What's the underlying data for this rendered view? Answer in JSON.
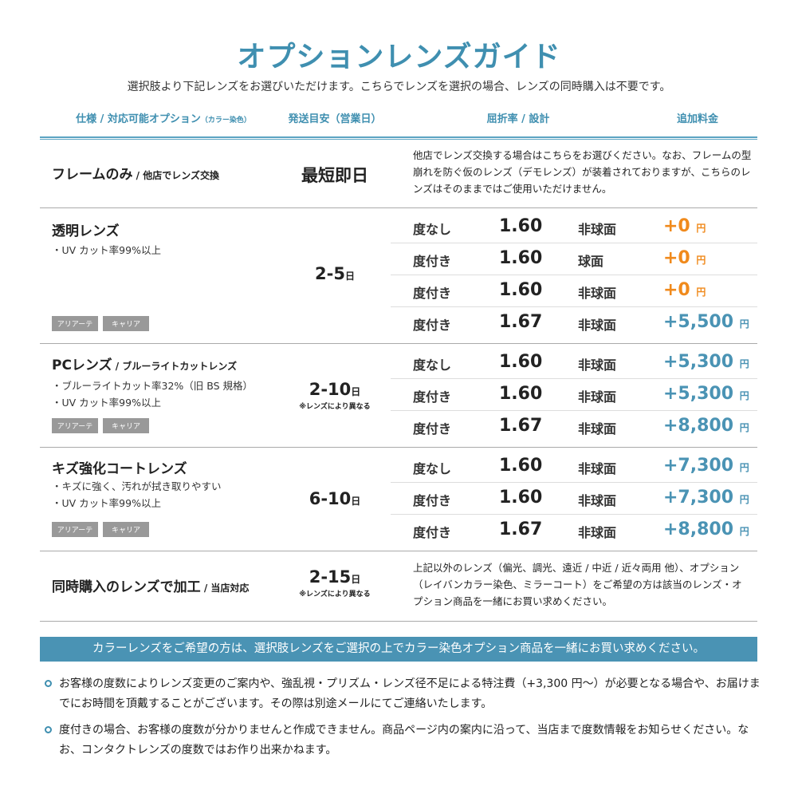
{
  "title": "オプションレンズガイド",
  "subtitle": "選択肢より下記レンズをお選びいただけます。こちらでレンズを選択の場合、レンズの同時購入は不要です。",
  "headers": {
    "spec": "仕様 / 対応可能オプション",
    "spec_small": "（カラー染色）",
    "days": "発送目安（営業日）",
    "index": "屈折率 / 設計",
    "price": "追加料金"
  },
  "colors": {
    "accent": "#3f8fb0",
    "orange": "#f08a1c",
    "price_blue": "#4a93b4"
  },
  "sections": [
    {
      "name": "フレームのみ",
      "sub": " / 他店でレンズ交換",
      "days": "最短即日",
      "desc": "他店でレンズ交換する場合はこちらをお選びください。なお、フレームの型崩れを防ぐ仮のレンズ（デモレンズ）が装着されておりますが、こちらのレンズはそのままではご使用いただけません。"
    },
    {
      "name": "透明レンズ",
      "bullets": [
        "・UV カット率99%以上"
      ],
      "tags": [
        "アリアーテ",
        "キャリア"
      ],
      "days": "2-5",
      "unit": "日",
      "rows": [
        {
          "label": "度なし",
          "index": "1.60",
          "design": "非球面",
          "price": "+0",
          "yen": "円"
        },
        {
          "label": "度付き",
          "index": "1.60",
          "design": "球面",
          "price": "+0",
          "yen": "円"
        },
        {
          "label": "度付き",
          "index": "1.60",
          "design": "非球面",
          "price": "+0",
          "yen": "円"
        },
        {
          "label": "度付き",
          "index": "1.67",
          "design": "非球面",
          "price": "+5,500",
          "yen": "円"
        }
      ]
    },
    {
      "name": "PCレンズ",
      "sub": " / ブルーライトカットレンズ",
      "bullets": [
        "・ブルーライトカット率32%（旧 BS 規格）",
        "・UV カット率99%以上"
      ],
      "tags": [
        "アリアーテ",
        "キャリア"
      ],
      "days": "2-10",
      "unit": "日",
      "note": "※レンズにより異なる",
      "rows": [
        {
          "label": "度なし",
          "index": "1.60",
          "design": "非球面",
          "price": "+5,300",
          "yen": "円"
        },
        {
          "label": "度付き",
          "index": "1.60",
          "design": "非球面",
          "price": "+5,300",
          "yen": "円"
        },
        {
          "label": "度付き",
          "index": "1.67",
          "design": "非球面",
          "price": "+8,800",
          "yen": "円"
        }
      ]
    },
    {
      "name": "キズ強化コートレンズ",
      "bullets": [
        "・キズに強く、汚れが拭き取りやすい",
        "・UV カット率99%以上"
      ],
      "tags": [
        "アリアーテ",
        "キャリア"
      ],
      "days": "6-10",
      "unit": "日",
      "rows": [
        {
          "label": "度なし",
          "index": "1.60",
          "design": "非球面",
          "price": "+7,300",
          "yen": "円"
        },
        {
          "label": "度付き",
          "index": "1.60",
          "design": "非球面",
          "price": "+7,300",
          "yen": "円"
        },
        {
          "label": "度付き",
          "index": "1.67",
          "design": "非球面",
          "price": "+8,800",
          "yen": "円"
        }
      ]
    },
    {
      "name": "同時購入のレンズで加工",
      "sub": " / 当店対応",
      "days": "2-15",
      "unit": "日",
      "note": "※レンズにより異なる",
      "desc": "上記以外のレンズ（偏光、調光、遠近 / 中近 / 近々両用 他）、オプション（レイバンカラー染色、ミラーコート）をご希望の方は該当のレンズ・オプション商品を一緒にお買い求めください。"
    }
  ],
  "banner": "カラーレンズをご希望の方は、選択肢レンズをご選択の上でカラー染色オプション商品を一緒にお買い求めください。",
  "notes": [
    "お客様の度数によりレンズ変更のご案内や、強乱視・プリズム・レンズ径不足による特注費（+3,300 円〜）が必要となる場合や、お届けまでにお時間を頂戴することがございます。その際は別途メールにてご連絡いたします。",
    "度付きの場合、お客様の度数が分かりませんと作成できません。商品ページ内の案内に沿って、当店まで度数情報をお知らせください。なお、コンタクトレンズの度数ではお作り出来かねます。"
  ]
}
